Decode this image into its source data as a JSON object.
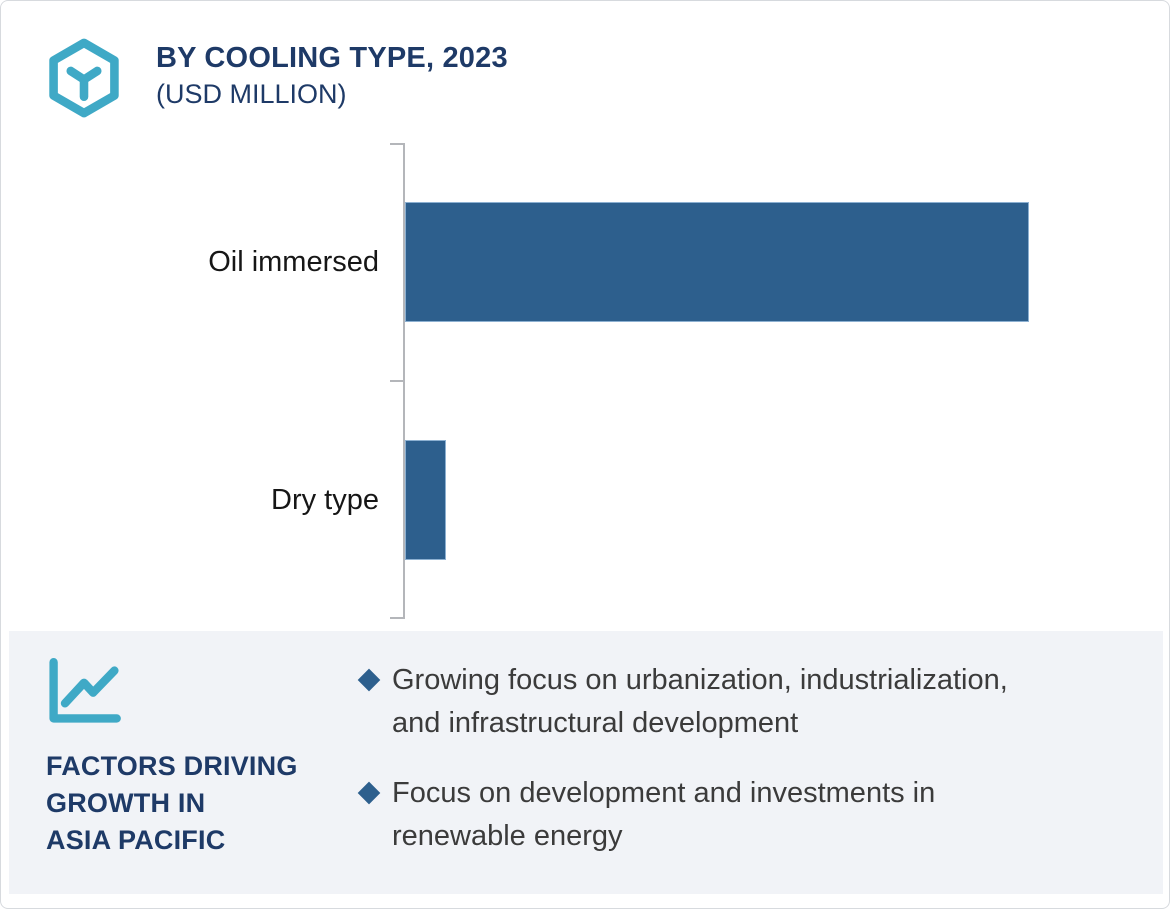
{
  "header": {
    "title": "BY COOLING TYPE, 2023",
    "subtitle": "(USD MILLION)",
    "logo_icon": "hexagon-cube-icon"
  },
  "chart_data": {
    "type": "bar",
    "orientation": "horizontal",
    "title": "BY COOLING TYPE, 2023 (USD MILLION)",
    "categories": [
      "Oil immersed",
      "Dry type"
    ],
    "values": [
      100,
      6.6
    ],
    "values_note": "no numeric axis or data labels shown in chart; values are relative estimates with largest bar = 100",
    "xlabel": "",
    "ylabel": "",
    "xlim": [
      0,
      117
    ],
    "grid": false,
    "legend": false,
    "bar_color": "#2d5f8d",
    "axis_color": "#b4b6ba"
  },
  "footer": {
    "icon": "line-chart-icon",
    "heading": "FACTORS DRIVING\nGROWTH IN\nASIA PACIFIC",
    "bullet_icon": "diamond-bullet",
    "bullets": [
      {
        "text": "Growing focus on urbanization, industrialization,\nand infrastructural development"
      },
      {
        "text": "Focus on development and investments in\nrenewable energy"
      }
    ]
  },
  "colors": {
    "bar": "#2d5f8d",
    "bullet": "#2d5f8d",
    "accent_teal": "#3fa9c6",
    "navy": "#1e3a67",
    "panel_bg": "#f1f3f7",
    "axis": "#b4b6ba",
    "border": "#d7dade"
  }
}
